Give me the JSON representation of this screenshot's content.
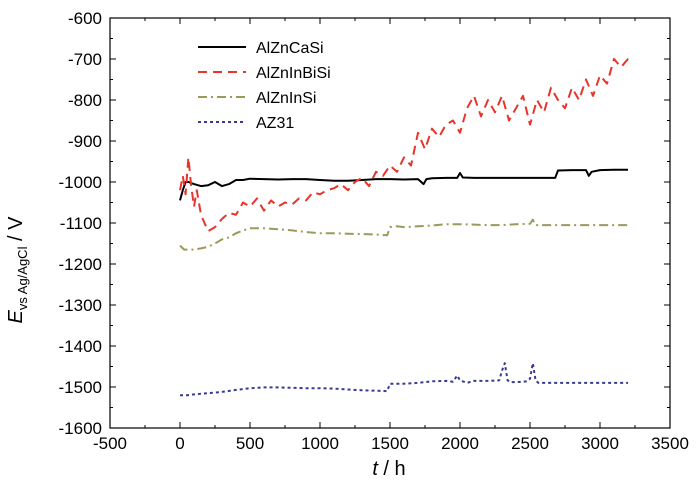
{
  "chart_data": {
    "type": "line",
    "xlabel": {
      "var": "t",
      "unit": " / h"
    },
    "ylabel": {
      "var": "E",
      "sub": "vs Ag/AgCl",
      "unit": " / V"
    },
    "xlim": [
      -500,
      3500
    ],
    "ylim": [
      -1600,
      -600
    ],
    "x_ticks": [
      -500,
      0,
      500,
      1000,
      1500,
      2000,
      2500,
      3000,
      3500
    ],
    "y_ticks": [
      -600,
      -700,
      -800,
      -900,
      -1000,
      -1100,
      -1200,
      -1300,
      -1400,
      -1500,
      -1600
    ],
    "grid": false,
    "legend_position": "top-left",
    "series": [
      {
        "name": "AlZnCaSi",
        "color": "#000000",
        "dash": "solid",
        "x": [
          0,
          20,
          40,
          60,
          100,
          150,
          200,
          250,
          300,
          350,
          400,
          450,
          500,
          600,
          700,
          800,
          900,
          1000,
          1100,
          1200,
          1300,
          1400,
          1500,
          1600,
          1700,
          1740,
          1760,
          1800,
          1900,
          1980,
          2000,
          2020,
          2100,
          2200,
          2300,
          2400,
          2500,
          2600,
          2680,
          2700,
          2800,
          2900,
          2920,
          2940,
          3000,
          3100,
          3200
        ],
        "y": [
          -1045,
          -1020,
          -1000,
          -1000,
          -1005,
          -1010,
          -1008,
          -1000,
          -1010,
          -1005,
          -995,
          -995,
          -992,
          -993,
          -994,
          -993,
          -993,
          -995,
          -997,
          -997,
          -995,
          -993,
          -993,
          -994,
          -993,
          -1005,
          -993,
          -991,
          -990,
          -990,
          -978,
          -989,
          -990,
          -990,
          -990,
          -990,
          -990,
          -990,
          -990,
          -972,
          -971,
          -971,
          -985,
          -975,
          -971,
          -970,
          -970
        ]
      },
      {
        "name": "AlZnInBiSi",
        "color": "#e8342a",
        "dash": "dashed",
        "x": [
          0,
          20,
          40,
          60,
          80,
          100,
          120,
          150,
          200,
          250,
          300,
          350,
          400,
          450,
          500,
          550,
          600,
          650,
          700,
          750,
          800,
          850,
          900,
          950,
          1000,
          1050,
          1100,
          1150,
          1200,
          1250,
          1300,
          1350,
          1400,
          1450,
          1500,
          1550,
          1600,
          1650,
          1700,
          1750,
          1800,
          1850,
          1900,
          1950,
          2000,
          2050,
          2100,
          2150,
          2200,
          2250,
          2300,
          2350,
          2400,
          2450,
          2500,
          2550,
          2600,
          2650,
          2700,
          2750,
          2800,
          2850,
          2900,
          2950,
          3000,
          3050,
          3100,
          3150,
          3200,
          3230
        ],
        "y": [
          -1020,
          -985,
          -1030,
          -940,
          -1010,
          -1060,
          -1020,
          -1080,
          -1120,
          -1110,
          -1090,
          -1075,
          -1080,
          -1050,
          -1060,
          -1040,
          -1070,
          -1045,
          -1060,
          -1050,
          -1055,
          -1040,
          -1045,
          -1025,
          -1030,
          -1020,
          -1015,
          -1005,
          -1020,
          -1000,
          -990,
          -1010,
          -975,
          -985,
          -960,
          -975,
          -940,
          -960,
          -880,
          -920,
          -870,
          -890,
          -860,
          -850,
          -880,
          -820,
          -790,
          -840,
          -800,
          -830,
          -790,
          -850,
          -820,
          -790,
          -860,
          -800,
          -830,
          -770,
          -800,
          -820,
          -770,
          -800,
          -750,
          -790,
          -740,
          -760,
          -700,
          -720,
          -700,
          -700
        ]
      },
      {
        "name": "AlZnInSi",
        "color": "#9c9a5a",
        "dash": "dashdot",
        "x": [
          0,
          30,
          60,
          100,
          150,
          200,
          250,
          300,
          350,
          400,
          450,
          500,
          600,
          700,
          800,
          900,
          1000,
          1100,
          1200,
          1300,
          1400,
          1480,
          1500,
          1550,
          1600,
          1700,
          1800,
          1900,
          2000,
          2100,
          2200,
          2300,
          2400,
          2500,
          2520,
          2540,
          2600,
          2700,
          2800,
          2900,
          3000,
          3100,
          3200
        ],
        "y": [
          -1155,
          -1165,
          -1165,
          -1165,
          -1162,
          -1158,
          -1150,
          -1140,
          -1135,
          -1125,
          -1118,
          -1113,
          -1113,
          -1115,
          -1118,
          -1122,
          -1125,
          -1125,
          -1126,
          -1127,
          -1128,
          -1130,
          -1110,
          -1108,
          -1110,
          -1108,
          -1106,
          -1103,
          -1103,
          -1104,
          -1105,
          -1105,
          -1103,
          -1102,
          -1092,
          -1105,
          -1105,
          -1105,
          -1105,
          -1105,
          -1105,
          -1105,
          -1105
        ]
      },
      {
        "name": "AZ31",
        "color": "#3a3a92",
        "dash": "dotted",
        "x": [
          0,
          50,
          100,
          200,
          300,
          400,
          500,
          600,
          700,
          800,
          900,
          1000,
          1100,
          1200,
          1300,
          1400,
          1480,
          1500,
          1600,
          1700,
          1800,
          1900,
          1950,
          1980,
          2000,
          2050,
          2100,
          2200,
          2280,
          2300,
          2320,
          2340,
          2360,
          2400,
          2450,
          2480,
          2500,
          2520,
          2540,
          2560,
          2600,
          2700,
          2800,
          2900,
          3000,
          3100,
          3200
        ],
        "y": [
          -1520,
          -1520,
          -1518,
          -1515,
          -1512,
          -1507,
          -1503,
          -1501,
          -1501,
          -1502,
          -1503,
          -1503,
          -1504,
          -1506,
          -1508,
          -1509,
          -1510,
          -1492,
          -1492,
          -1490,
          -1486,
          -1485,
          -1487,
          -1472,
          -1484,
          -1490,
          -1485,
          -1485,
          -1484,
          -1460,
          -1442,
          -1484,
          -1488,
          -1488,
          -1487,
          -1486,
          -1480,
          -1442,
          -1484,
          -1490,
          -1490,
          -1490,
          -1490,
          -1490,
          -1490,
          -1490,
          -1490
        ]
      }
    ]
  }
}
